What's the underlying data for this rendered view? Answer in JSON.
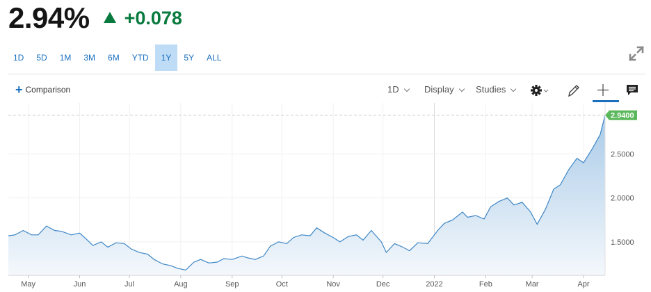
{
  "quote": {
    "price": "2.94%",
    "change": "+0.078",
    "change_color": "#087a3d"
  },
  "ranges": [
    {
      "label": "1D",
      "active": false
    },
    {
      "label": "5D",
      "active": false
    },
    {
      "label": "1M",
      "active": false
    },
    {
      "label": "3M",
      "active": false
    },
    {
      "label": "6M",
      "active": false
    },
    {
      "label": "YTD",
      "active": false
    },
    {
      "label": "1Y",
      "active": true
    },
    {
      "label": "5Y",
      "active": false
    },
    {
      "label": "ALL",
      "active": false
    }
  ],
  "toolbar": {
    "comparison_label": "Comparison",
    "interval_label": "1D",
    "display_label": "Display",
    "studies_label": "Studies",
    "icons": [
      "gear-icon",
      "pencil-icon",
      "crosshair-icon",
      "comment-icon"
    ]
  },
  "chart_data": {
    "type": "area",
    "title": "",
    "xlabel": "",
    "ylabel": "",
    "x_ticks": [
      "May",
      "Jun",
      "Jul",
      "Aug",
      "Sep",
      "Oct",
      "Nov",
      "Dec",
      "2022",
      "Feb",
      "Mar",
      "Apr"
    ],
    "y_ticks": [
      "1.5000",
      "2.0000",
      "2.5000"
    ],
    "y_tick_values": [
      1.5,
      2.0,
      2.5
    ],
    "ylim": [
      1.12,
      3.08
    ],
    "last_value_label": "2.9400",
    "last_value": 2.94,
    "grid": true,
    "line_color": "#3d86c6",
    "fill_color_top": "#aacbe8",
    "fill_color_bottom": "#f4f8fc",
    "label_color": "#5cb85c",
    "series": [
      {
        "x": [
          "2021-04-19",
          "2021-04-23",
          "2021-04-28",
          "2021-05-03",
          "2021-05-07",
          "2021-05-12",
          "2021-05-17",
          "2021-05-21",
          "2021-05-27",
          "2021-06-01",
          "2021-06-04",
          "2021-06-09",
          "2021-06-14",
          "2021-06-18",
          "2021-06-23",
          "2021-06-28",
          "2021-07-02",
          "2021-07-07",
          "2021-07-12",
          "2021-07-16",
          "2021-07-21",
          "2021-07-26",
          "2021-07-30",
          "2021-08-04",
          "2021-08-09",
          "2021-08-13",
          "2021-08-18",
          "2021-08-23",
          "2021-08-27",
          "2021-09-01",
          "2021-09-07",
          "2021-09-10",
          "2021-09-15",
          "2021-09-20",
          "2021-09-24",
          "2021-09-29",
          "2021-10-04",
          "2021-10-08",
          "2021-10-13",
          "2021-10-18",
          "2021-10-22",
          "2021-10-27",
          "2021-11-01",
          "2021-11-05",
          "2021-11-10",
          "2021-11-15",
          "2021-11-19",
          "2021-11-24",
          "2021-11-30",
          "2021-12-03",
          "2021-12-08",
          "2021-12-13",
          "2021-12-17",
          "2021-12-22",
          "2021-12-28",
          "2022-01-03",
          "2022-01-07",
          "2022-01-12",
          "2022-01-18",
          "2022-01-21",
          "2022-01-26",
          "2022-01-31",
          "2022-02-04",
          "2022-02-09",
          "2022-02-14",
          "2022-02-18",
          "2022-02-23",
          "2022-02-28",
          "2022-03-04",
          "2022-03-09",
          "2022-03-14",
          "2022-03-18",
          "2022-03-23",
          "2022-03-28",
          "2022-04-01",
          "2022-04-06",
          "2022-04-11",
          "2022-04-14"
        ],
        "values": [
          1.57,
          1.58,
          1.63,
          1.58,
          1.58,
          1.68,
          1.63,
          1.62,
          1.58,
          1.6,
          1.55,
          1.46,
          1.5,
          1.44,
          1.49,
          1.48,
          1.42,
          1.38,
          1.36,
          1.3,
          1.25,
          1.23,
          1.2,
          1.18,
          1.27,
          1.3,
          1.26,
          1.27,
          1.31,
          1.3,
          1.34,
          1.32,
          1.3,
          1.34,
          1.45,
          1.5,
          1.48,
          1.55,
          1.58,
          1.57,
          1.66,
          1.6,
          1.55,
          1.5,
          1.56,
          1.58,
          1.52,
          1.63,
          1.5,
          1.38,
          1.48,
          1.44,
          1.4,
          1.49,
          1.48,
          1.63,
          1.71,
          1.75,
          1.84,
          1.78,
          1.8,
          1.76,
          1.9,
          1.96,
          2.0,
          1.92,
          1.95,
          1.84,
          1.7,
          1.87,
          2.1,
          2.15,
          2.32,
          2.45,
          2.4,
          2.55,
          2.72,
          2.94
        ]
      }
    ]
  }
}
